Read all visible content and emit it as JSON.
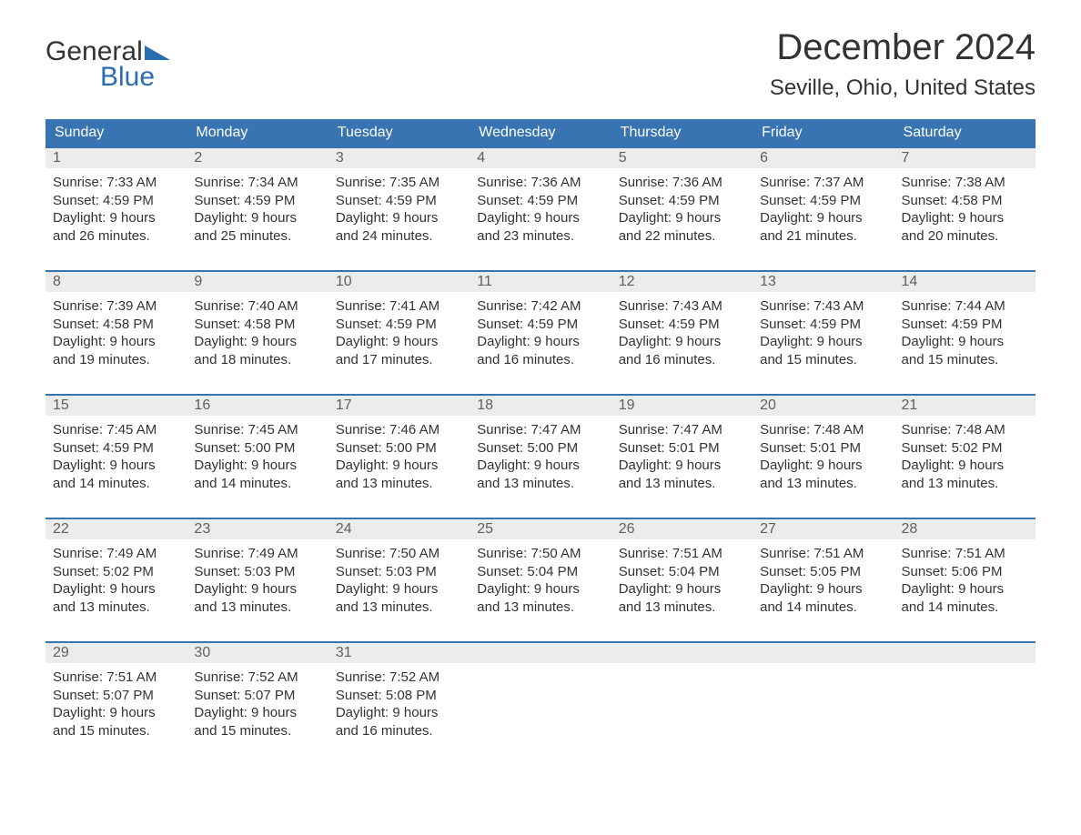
{
  "logo": {
    "word1": "General",
    "word2": "Blue"
  },
  "title": "December 2024",
  "location": "Seville, Ohio, United States",
  "colors": {
    "header_bg": "#3874b1",
    "header_text": "#ffffff",
    "daynum_bg": "#ececec",
    "daynum_text": "#5f5f5f",
    "body_text": "#333333",
    "logo_blue": "#2a6db0",
    "page_bg": "#ffffff",
    "week_border": "#3874b1"
  },
  "typography": {
    "title_fontsize": 40,
    "location_fontsize": 24,
    "dow_fontsize": 16,
    "daynum_fontsize": 16,
    "cell_fontsize": 15,
    "logo_fontsize": 30
  },
  "days_of_week": [
    "Sunday",
    "Monday",
    "Tuesday",
    "Wednesday",
    "Thursday",
    "Friday",
    "Saturday"
  ],
  "labels": {
    "sunrise": "Sunrise:",
    "sunset": "Sunset:",
    "daylight": "Daylight:"
  },
  "weeks": [
    [
      {
        "n": "1",
        "sr": "7:33 AM",
        "ss": "4:59 PM",
        "dh": "9",
        "dm": "26"
      },
      {
        "n": "2",
        "sr": "7:34 AM",
        "ss": "4:59 PM",
        "dh": "9",
        "dm": "25"
      },
      {
        "n": "3",
        "sr": "7:35 AM",
        "ss": "4:59 PM",
        "dh": "9",
        "dm": "24"
      },
      {
        "n": "4",
        "sr": "7:36 AM",
        "ss": "4:59 PM",
        "dh": "9",
        "dm": "23"
      },
      {
        "n": "5",
        "sr": "7:36 AM",
        "ss": "4:59 PM",
        "dh": "9",
        "dm": "22"
      },
      {
        "n": "6",
        "sr": "7:37 AM",
        "ss": "4:59 PM",
        "dh": "9",
        "dm": "21"
      },
      {
        "n": "7",
        "sr": "7:38 AM",
        "ss": "4:58 PM",
        "dh": "9",
        "dm": "20"
      }
    ],
    [
      {
        "n": "8",
        "sr": "7:39 AM",
        "ss": "4:58 PM",
        "dh": "9",
        "dm": "19"
      },
      {
        "n": "9",
        "sr": "7:40 AM",
        "ss": "4:58 PM",
        "dh": "9",
        "dm": "18"
      },
      {
        "n": "10",
        "sr": "7:41 AM",
        "ss": "4:59 PM",
        "dh": "9",
        "dm": "17"
      },
      {
        "n": "11",
        "sr": "7:42 AM",
        "ss": "4:59 PM",
        "dh": "9",
        "dm": "16"
      },
      {
        "n": "12",
        "sr": "7:43 AM",
        "ss": "4:59 PM",
        "dh": "9",
        "dm": "16"
      },
      {
        "n": "13",
        "sr": "7:43 AM",
        "ss": "4:59 PM",
        "dh": "9",
        "dm": "15"
      },
      {
        "n": "14",
        "sr": "7:44 AM",
        "ss": "4:59 PM",
        "dh": "9",
        "dm": "15"
      }
    ],
    [
      {
        "n": "15",
        "sr": "7:45 AM",
        "ss": "4:59 PM",
        "dh": "9",
        "dm": "14"
      },
      {
        "n": "16",
        "sr": "7:45 AM",
        "ss": "5:00 PM",
        "dh": "9",
        "dm": "14"
      },
      {
        "n": "17",
        "sr": "7:46 AM",
        "ss": "5:00 PM",
        "dh": "9",
        "dm": "13"
      },
      {
        "n": "18",
        "sr": "7:47 AM",
        "ss": "5:00 PM",
        "dh": "9",
        "dm": "13"
      },
      {
        "n": "19",
        "sr": "7:47 AM",
        "ss": "5:01 PM",
        "dh": "9",
        "dm": "13"
      },
      {
        "n": "20",
        "sr": "7:48 AM",
        "ss": "5:01 PM",
        "dh": "9",
        "dm": "13"
      },
      {
        "n": "21",
        "sr": "7:48 AM",
        "ss": "5:02 PM",
        "dh": "9",
        "dm": "13"
      }
    ],
    [
      {
        "n": "22",
        "sr": "7:49 AM",
        "ss": "5:02 PM",
        "dh": "9",
        "dm": "13"
      },
      {
        "n": "23",
        "sr": "7:49 AM",
        "ss": "5:03 PM",
        "dh": "9",
        "dm": "13"
      },
      {
        "n": "24",
        "sr": "7:50 AM",
        "ss": "5:03 PM",
        "dh": "9",
        "dm": "13"
      },
      {
        "n": "25",
        "sr": "7:50 AM",
        "ss": "5:04 PM",
        "dh": "9",
        "dm": "13"
      },
      {
        "n": "26",
        "sr": "7:51 AM",
        "ss": "5:04 PM",
        "dh": "9",
        "dm": "13"
      },
      {
        "n": "27",
        "sr": "7:51 AM",
        "ss": "5:05 PM",
        "dh": "9",
        "dm": "14"
      },
      {
        "n": "28",
        "sr": "7:51 AM",
        "ss": "5:06 PM",
        "dh": "9",
        "dm": "14"
      }
    ],
    [
      {
        "n": "29",
        "sr": "7:51 AM",
        "ss": "5:07 PM",
        "dh": "9",
        "dm": "15"
      },
      {
        "n": "30",
        "sr": "7:52 AM",
        "ss": "5:07 PM",
        "dh": "9",
        "dm": "15"
      },
      {
        "n": "31",
        "sr": "7:52 AM",
        "ss": "5:08 PM",
        "dh": "9",
        "dm": "16"
      },
      null,
      null,
      null,
      null
    ]
  ]
}
